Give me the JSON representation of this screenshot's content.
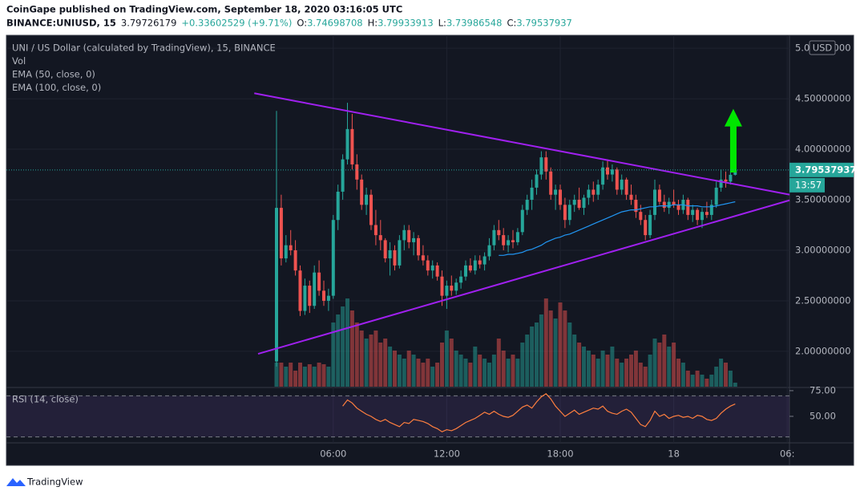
{
  "header": {
    "publisher": "CoinGape published on TradingView.com, September 18, 2020 03:16:05 UTC",
    "symbol": "BINANCE:UNIUSD, 15",
    "last": "3.79726179",
    "change": "+0.33602529 (+9.71%)",
    "ohlc": [
      {
        "label": "O:",
        "value": "3.74698708"
      },
      {
        "label": "H:",
        "value": "3.79933913"
      },
      {
        "label": "L:",
        "value": "3.73986548"
      },
      {
        "label": "C:",
        "value": "3.79537937"
      }
    ]
  },
  "footer": {
    "brand": "TradingView"
  },
  "chart_data": {
    "type": "candlestick",
    "legend": [
      "UNI / US Dollar (calculated by TradingView), 15, BINANCE",
      "Vol",
      "EMA (50, close, 0)",
      "EMA (100, close, 0)"
    ],
    "currency": "USD",
    "last_price": {
      "value": 3.79537937,
      "label": "3.79537937"
    },
    "countdown": "13:57",
    "up_color": "#26a69a",
    "down_color": "#ef5350",
    "ema_color": "#2196f3",
    "ylim": [
      1.65,
      5.12
    ],
    "yticks": [
      {
        "value": 2,
        "label": "2.00000000"
      },
      {
        "value": 2.5,
        "label": "2.50000000"
      },
      {
        "value": 3,
        "label": "3.00000000"
      },
      {
        "value": 3.5,
        "label": "3.50000000"
      },
      {
        "value": 4,
        "label": "4.00000000"
      },
      {
        "value": 4.5,
        "label": "4.50000000"
      },
      {
        "value": 5,
        "label": "5.00000000"
      }
    ],
    "xticks": [
      {
        "value": 12,
        "label": "06:00"
      },
      {
        "value": 36,
        "label": "12:00"
      },
      {
        "value": 60,
        "label": "18:00"
      },
      {
        "value": 84,
        "label": "18"
      },
      {
        "value": 108,
        "label": "06:"
      }
    ],
    "ohlc": [
      [
        1.9,
        4.38,
        1.85,
        3.42
      ],
      [
        3.42,
        3.55,
        2.85,
        2.92
      ],
      [
        2.92,
        3.15,
        2.88,
        3.05
      ],
      [
        3.05,
        3.2,
        2.95,
        3.0
      ],
      [
        3.0,
        3.1,
        2.75,
        2.8
      ],
      [
        2.8,
        2.85,
        2.35,
        2.4
      ],
      [
        2.4,
        2.72,
        2.36,
        2.65
      ],
      [
        2.65,
        2.7,
        2.38,
        2.45
      ],
      [
        2.45,
        2.85,
        2.42,
        2.78
      ],
      [
        2.78,
        2.9,
        2.55,
        2.6
      ],
      [
        2.6,
        2.7,
        2.45,
        2.5
      ],
      [
        2.5,
        2.62,
        2.4,
        2.55
      ],
      [
        2.55,
        3.35,
        2.52,
        3.3
      ],
      [
        3.3,
        3.65,
        3.2,
        3.58
      ],
      [
        3.58,
        3.95,
        3.5,
        3.9
      ],
      [
        3.9,
        4.46,
        3.85,
        4.2
      ],
      [
        4.2,
        4.35,
        3.8,
        3.85
      ],
      [
        3.85,
        3.95,
        3.6,
        3.7
      ],
      [
        3.7,
        3.75,
        3.4,
        3.45
      ],
      [
        3.45,
        3.62,
        3.35,
        3.55
      ],
      [
        3.55,
        3.6,
        3.2,
        3.25
      ],
      [
        3.25,
        3.4,
        3.05,
        3.15
      ],
      [
        3.15,
        3.3,
        3.0,
        3.1
      ],
      [
        3.1,
        3.12,
        2.88,
        2.92
      ],
      [
        2.92,
        3.08,
        2.75,
        3.0
      ],
      [
        3.0,
        3.05,
        2.8,
        2.85
      ],
      [
        2.85,
        3.15,
        2.82,
        3.1
      ],
      [
        3.1,
        3.25,
        3.0,
        3.2
      ],
      [
        3.2,
        3.25,
        3.02,
        3.08
      ],
      [
        3.08,
        3.18,
        2.95,
        3.12
      ],
      [
        3.12,
        3.15,
        2.9,
        2.95
      ],
      [
        2.95,
        3.05,
        2.85,
        2.9
      ],
      [
        2.9,
        2.95,
        2.75,
        2.8
      ],
      [
        2.8,
        2.9,
        2.72,
        2.85
      ],
      [
        2.85,
        2.88,
        2.7,
        2.74
      ],
      [
        2.74,
        2.8,
        2.45,
        2.55
      ],
      [
        2.55,
        2.7,
        2.42,
        2.65
      ],
      [
        2.65,
        2.75,
        2.55,
        2.6
      ],
      [
        2.6,
        2.72,
        2.56,
        2.68
      ],
      [
        2.68,
        2.8,
        2.62,
        2.74
      ],
      [
        2.74,
        2.9,
        2.7,
        2.85
      ],
      [
        2.85,
        2.92,
        2.78,
        2.8
      ],
      [
        2.8,
        2.95,
        2.76,
        2.9
      ],
      [
        2.9,
        2.95,
        2.82,
        2.86
      ],
      [
        2.86,
        2.98,
        2.8,
        2.94
      ],
      [
        2.94,
        3.12,
        2.9,
        3.05
      ],
      [
        3.05,
        3.25,
        3.0,
        3.2
      ],
      [
        3.2,
        3.3,
        3.1,
        3.15
      ],
      [
        3.15,
        3.22,
        3.0,
        3.05
      ],
      [
        3.05,
        3.15,
        2.98,
        3.1
      ],
      [
        3.1,
        3.2,
        3.02,
        3.08
      ],
      [
        3.08,
        3.22,
        3.05,
        3.18
      ],
      [
        3.18,
        3.45,
        3.15,
        3.4
      ],
      [
        3.4,
        3.55,
        3.35,
        3.5
      ],
      [
        3.5,
        3.7,
        3.4,
        3.62
      ],
      [
        3.62,
        3.8,
        3.55,
        3.75
      ],
      [
        3.75,
        3.98,
        3.7,
        3.92
      ],
      [
        3.92,
        3.98,
        3.7,
        3.78
      ],
      [
        3.78,
        3.82,
        3.5,
        3.55
      ],
      [
        3.55,
        3.65,
        3.4,
        3.6
      ],
      [
        3.6,
        3.65,
        3.4,
        3.45
      ],
      [
        3.45,
        3.52,
        3.22,
        3.3
      ],
      [
        3.3,
        3.5,
        3.25,
        3.45
      ],
      [
        3.45,
        3.55,
        3.38,
        3.5
      ],
      [
        3.5,
        3.62,
        3.4,
        3.42
      ],
      [
        3.42,
        3.55,
        3.35,
        3.52
      ],
      [
        3.52,
        3.65,
        3.45,
        3.6
      ],
      [
        3.6,
        3.68,
        3.48,
        3.55
      ],
      [
        3.55,
        3.7,
        3.5,
        3.65
      ],
      [
        3.65,
        3.88,
        3.6,
        3.82
      ],
      [
        3.82,
        3.9,
        3.7,
        3.75
      ],
      [
        3.75,
        3.85,
        3.68,
        3.8
      ],
      [
        3.8,
        3.82,
        3.55,
        3.6
      ],
      [
        3.6,
        3.75,
        3.55,
        3.7
      ],
      [
        3.7,
        3.72,
        3.5,
        3.55
      ],
      [
        3.55,
        3.65,
        3.45,
        3.5
      ],
      [
        3.5,
        3.55,
        3.32,
        3.38
      ],
      [
        3.38,
        3.45,
        3.25,
        3.3
      ],
      [
        3.3,
        3.35,
        3.1,
        3.15
      ],
      [
        3.15,
        3.4,
        3.12,
        3.35
      ],
      [
        3.35,
        3.7,
        3.3,
        3.6
      ],
      [
        3.6,
        3.65,
        3.45,
        3.48
      ],
      [
        3.48,
        3.55,
        3.38,
        3.42
      ],
      [
        3.42,
        3.52,
        3.36,
        3.48
      ],
      [
        3.48,
        3.6,
        3.42,
        3.45
      ],
      [
        3.45,
        3.5,
        3.35,
        3.4
      ],
      [
        3.4,
        3.55,
        3.36,
        3.5
      ],
      [
        3.5,
        3.52,
        3.3,
        3.35
      ],
      [
        3.35,
        3.45,
        3.28,
        3.4
      ],
      [
        3.4,
        3.42,
        3.25,
        3.3
      ],
      [
        3.3,
        3.42,
        3.22,
        3.38
      ],
      [
        3.38,
        3.48,
        3.32,
        3.35
      ],
      [
        3.35,
        3.5,
        3.3,
        3.45
      ],
      [
        3.45,
        3.68,
        3.42,
        3.62
      ],
      [
        3.62,
        3.8,
        3.58,
        3.7
      ],
      [
        3.7,
        3.78,
        3.62,
        3.68
      ],
      [
        3.68,
        3.78,
        3.65,
        3.747
      ],
      [
        3.74698708,
        3.79933913,
        3.73986548,
        3.79537937
      ]
    ],
    "volume": [
      30,
      30,
      25,
      30,
      20,
      30,
      25,
      28,
      25,
      30,
      28,
      25,
      80,
      90,
      100,
      110,
      95,
      80,
      70,
      60,
      65,
      70,
      55,
      60,
      50,
      45,
      40,
      35,
      45,
      40,
      35,
      30,
      35,
      25,
      30,
      55,
      70,
      60,
      45,
      40,
      35,
      30,
      50,
      40,
      35,
      30,
      40,
      60,
      45,
      35,
      40,
      35,
      55,
      65,
      75,
      80,
      90,
      110,
      95,
      85,
      105,
      95,
      80,
      65,
      55,
      50,
      45,
      40,
      35,
      45,
      40,
      50,
      35,
      30,
      35,
      40,
      45,
      30,
      25,
      40,
      60,
      55,
      65,
      50,
      55,
      35,
      30,
      20,
      15,
      20,
      15,
      10,
      15,
      25,
      35,
      30,
      20,
      5
    ],
    "ema50": [
      null,
      null,
      null,
      null,
      null,
      null,
      null,
      null,
      null,
      null,
      null,
      null,
      null,
      null,
      null,
      null,
      null,
      null,
      null,
      null,
      null,
      null,
      null,
      null,
      null,
      null,
      null,
      null,
      null,
      null,
      null,
      null,
      null,
      null,
      null,
      null,
      null,
      null,
      null,
      null,
      null,
      null,
      null,
      null,
      null,
      null,
      null,
      2.95,
      2.95,
      2.96,
      2.96,
      2.97,
      2.98,
      3.0,
      3.01,
      3.03,
      3.05,
      3.08,
      3.1,
      3.12,
      3.13,
      3.15,
      3.16,
      3.18,
      3.2,
      3.22,
      3.24,
      3.26,
      3.28,
      3.3,
      3.32,
      3.34,
      3.36,
      3.38,
      3.39,
      3.4,
      3.4,
      3.41,
      3.42,
      3.43,
      3.43,
      3.44,
      3.44,
      3.44,
      3.45,
      3.45,
      3.45,
      3.44,
      3.44,
      3.44,
      3.43,
      3.43,
      3.43,
      3.44,
      3.45,
      3.46,
      3.47,
      3.48
    ],
    "trendlines": [
      {
        "color": "#a020f0",
        "points": [
          [
            -4.7,
            4.554
          ],
          [
            108.5,
            3.551
          ]
        ]
      },
      {
        "color": "#a020f0",
        "points": [
          [
            -3.9,
            1.975
          ],
          [
            108.5,
            3.495
          ]
        ]
      }
    ],
    "arrow": {
      "color": "#00e600",
      "x": 96.6,
      "from": 3.77,
      "to": 4.4
    },
    "rsi": {
      "title": "RSI (14, close)",
      "color": "#ff7f3f",
      "ylim": [
        24.2,
        77.3
      ],
      "bands": [
        30,
        70
      ],
      "yticks": [
        {
          "value": 75,
          "label": "75.00"
        },
        {
          "value": 50,
          "label": "50.00"
        }
      ],
      "values": [
        null,
        null,
        null,
        null,
        null,
        null,
        null,
        null,
        null,
        null,
        null,
        null,
        null,
        null,
        60,
        66,
        63,
        58,
        55,
        52,
        50,
        47,
        45,
        47,
        44,
        42,
        40,
        44,
        43,
        47,
        46,
        45,
        43,
        40,
        38,
        35,
        37,
        36,
        38,
        41,
        44,
        46,
        48,
        51,
        54,
        52,
        55,
        52,
        50,
        49,
        51,
        55,
        59,
        61,
        58,
        64,
        69,
        72,
        67,
        60,
        55,
        50,
        53,
        56,
        52,
        54,
        56,
        58,
        57,
        60,
        55,
        53,
        52,
        55,
        57,
        54,
        48,
        42,
        40,
        46,
        55,
        50,
        52,
        48,
        50,
        51,
        49,
        50,
        48,
        51,
        50,
        47,
        46,
        48,
        53,
        57,
        60,
        62
      ]
    }
  }
}
